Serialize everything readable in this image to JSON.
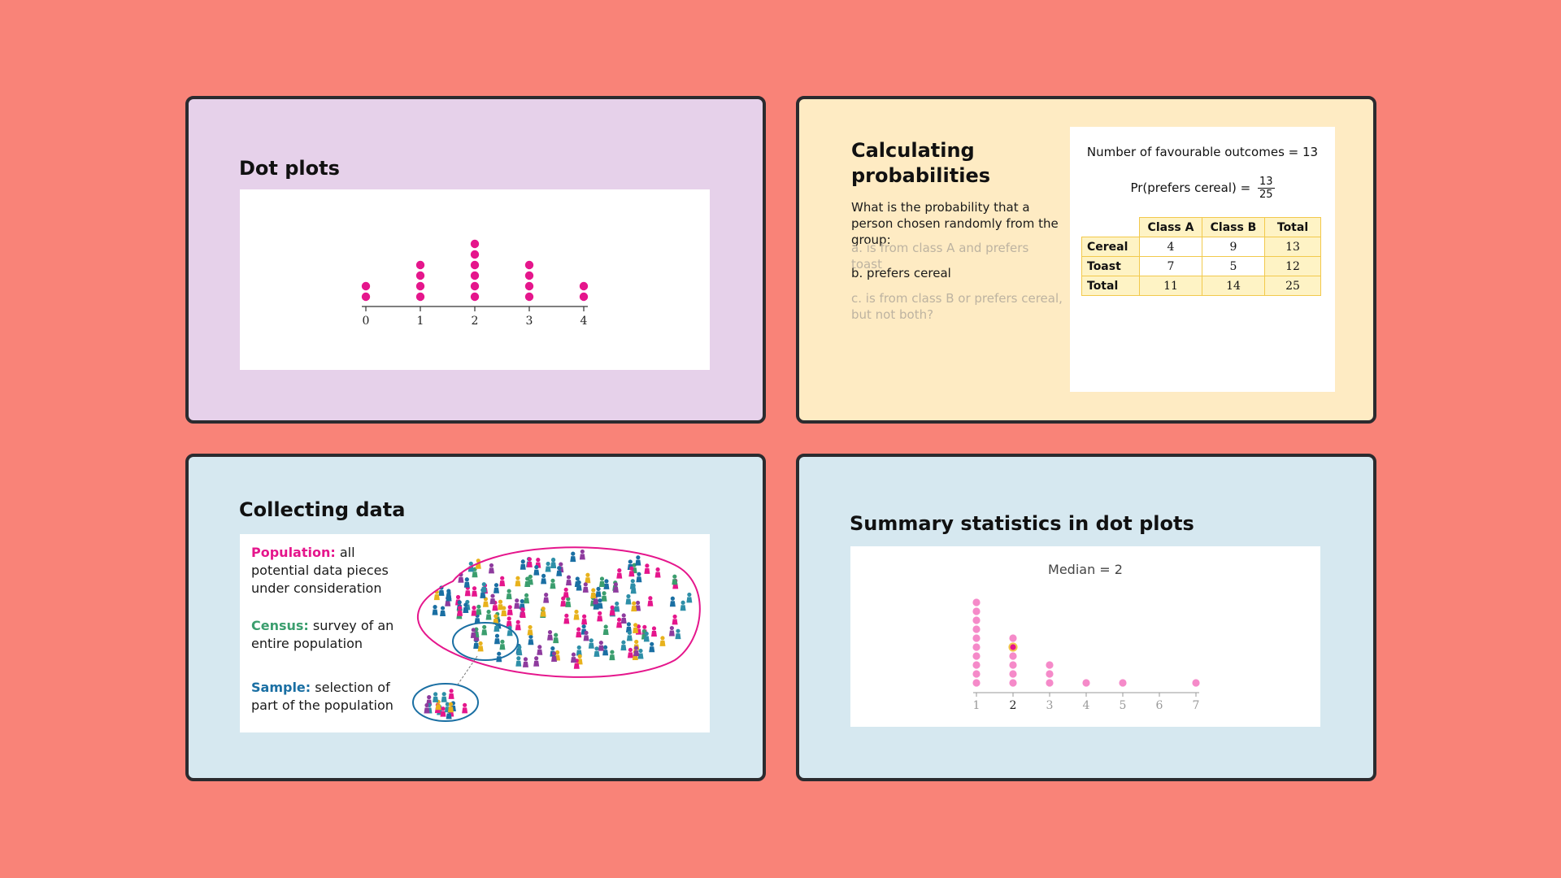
{
  "cards": {
    "dot_plots": {
      "title": "Dot plots",
      "chart_data": {
        "type": "scatter",
        "x_ticks": [
          "0",
          "1",
          "2",
          "3",
          "4"
        ],
        "counts": [
          2,
          4,
          6,
          4,
          2
        ],
        "dot_color": "#E5168C"
      }
    },
    "probabilities": {
      "title": "Calculating probabilities",
      "question": "What is the probability that a person chosen randomly from the group:",
      "options": [
        {
          "label": "a. is from class A and prefers toast",
          "active": false
        },
        {
          "label": "b. prefers cereal",
          "active": true
        },
        {
          "label": "c. is from class B or prefers cereal, but not both?",
          "active": false
        }
      ],
      "favourable": "Number of favourable outcomes = 13",
      "pr_label": "Pr(prefers cereal) =",
      "pr_num": "13",
      "pr_den": "25",
      "table": {
        "headers": [
          "Class A",
          "Class B",
          "Total"
        ],
        "rows": [
          {
            "label": "Cereal",
            "cells": [
              "4",
              "9",
              "13"
            ]
          },
          {
            "label": "Toast",
            "cells": [
              "7",
              "5",
              "12"
            ]
          },
          {
            "label": "Total",
            "cells": [
              "11",
              "14",
              "25"
            ]
          }
        ]
      }
    },
    "collecting": {
      "title": "Collecting data",
      "population_term": "Population:",
      "population_def": "all potential data pieces under consideration",
      "census_term": "Census:",
      "census_def": "survey of an entire population",
      "sample_term": "Sample:",
      "sample_def": "selection of part of the population",
      "colors": {
        "population": "#E5168C",
        "census": "#3B9E6E",
        "sample": "#1A6FA3"
      }
    },
    "summary": {
      "title": "Summary statistics in dot plots",
      "chart_data": {
        "type": "scatter",
        "title": "Median = 2",
        "x_ticks": [
          "1",
          "2",
          "3",
          "4",
          "5",
          "6",
          "7"
        ],
        "counts": [
          10,
          6,
          3,
          1,
          1,
          0,
          1
        ],
        "median": 2,
        "dot_color": "#F58AC9",
        "highlight_color": "#E5168C"
      }
    }
  }
}
